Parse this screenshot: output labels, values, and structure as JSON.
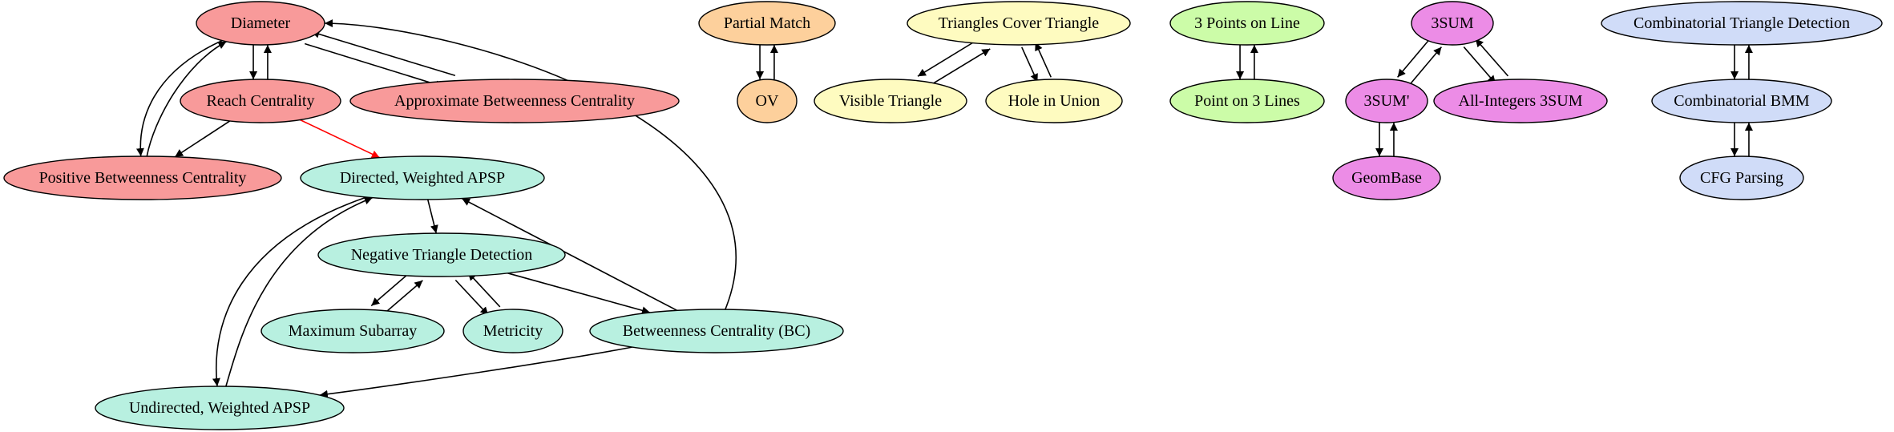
{
  "diagram": {
    "colors": {
      "red": "#f89a9a",
      "green": "#b8f0e0",
      "orange": "#fdd09c",
      "yellow": "#fefbc0",
      "lime": "#ccfca8",
      "pink": "#ec8ce6",
      "blue": "#d0dcf8",
      "edge": "#000000",
      "highlight_edge": "#ff0000"
    },
    "nodes": [
      {
        "id": "diameter",
        "label": "Diameter",
        "color": "red"
      },
      {
        "id": "reach",
        "label": "Reach Centrality",
        "color": "red"
      },
      {
        "id": "approx_bc",
        "label": "Approximate Betweenness Centrality",
        "color": "red"
      },
      {
        "id": "pos_bc",
        "label": "Positive Betweenness Centrality",
        "color": "red"
      },
      {
        "id": "dir_apsp",
        "label": "Directed, Weighted APSP",
        "color": "green"
      },
      {
        "id": "neg_tri",
        "label": "Negative Triangle Detection",
        "color": "green"
      },
      {
        "id": "max_sub",
        "label": "Maximum Subarray",
        "color": "green"
      },
      {
        "id": "metricity",
        "label": "Metricity",
        "color": "green"
      },
      {
        "id": "bc",
        "label": "Betweenness Centrality (BC)",
        "color": "green"
      },
      {
        "id": "undir_apsp",
        "label": "Undirected, Weighted APSP",
        "color": "green"
      },
      {
        "id": "partial",
        "label": "Partial Match",
        "color": "orange"
      },
      {
        "id": "ov",
        "label": "OV",
        "color": "orange"
      },
      {
        "id": "tri_cover",
        "label": "Triangles Cover Triangle",
        "color": "yellow"
      },
      {
        "id": "visible",
        "label": "Visible Triangle",
        "color": "yellow"
      },
      {
        "id": "hole",
        "label": "Hole in Union",
        "color": "yellow"
      },
      {
        "id": "points3",
        "label": "3 Points on Line",
        "color": "lime"
      },
      {
        "id": "lines3",
        "label": "Point on 3 Lines",
        "color": "lime"
      },
      {
        "id": "sum3",
        "label": "3SUM",
        "color": "pink"
      },
      {
        "id": "sum3p",
        "label": "3SUM'",
        "color": "pink"
      },
      {
        "id": "allint",
        "label": "All-Integers 3SUM",
        "color": "pink"
      },
      {
        "id": "geombase",
        "label": "GeomBase",
        "color": "pink"
      },
      {
        "id": "comb_tri",
        "label": "Combinatorial Triangle Detection",
        "color": "blue"
      },
      {
        "id": "comb_bmm",
        "label": "Combinatorial BMM",
        "color": "blue"
      },
      {
        "id": "cfg",
        "label": "CFG Parsing",
        "color": "blue"
      }
    ],
    "edges": [
      {
        "from": "diameter",
        "to": "reach"
      },
      {
        "from": "reach",
        "to": "diameter"
      },
      {
        "from": "diameter",
        "to": "approx_bc"
      },
      {
        "from": "approx_bc",
        "to": "diameter"
      },
      {
        "from": "diameter",
        "to": "pos_bc"
      },
      {
        "from": "pos_bc",
        "to": "diameter"
      },
      {
        "from": "reach",
        "to": "pos_bc"
      },
      {
        "from": "reach",
        "to": "dir_apsp",
        "highlight": true
      },
      {
        "from": "bc",
        "to": "diameter"
      },
      {
        "from": "dir_apsp",
        "to": "neg_tri"
      },
      {
        "from": "bc",
        "to": "dir_apsp"
      },
      {
        "from": "dir_apsp",
        "to": "undir_apsp"
      },
      {
        "from": "undir_apsp",
        "to": "dir_apsp"
      },
      {
        "from": "neg_tri",
        "to": "max_sub"
      },
      {
        "from": "max_sub",
        "to": "neg_tri"
      },
      {
        "from": "neg_tri",
        "to": "metricity"
      },
      {
        "from": "metricity",
        "to": "neg_tri"
      },
      {
        "from": "neg_tri",
        "to": "bc"
      },
      {
        "from": "bc",
        "to": "undir_apsp"
      },
      {
        "from": "partial",
        "to": "ov"
      },
      {
        "from": "ov",
        "to": "partial"
      },
      {
        "from": "tri_cover",
        "to": "visible"
      },
      {
        "from": "visible",
        "to": "tri_cover"
      },
      {
        "from": "tri_cover",
        "to": "hole"
      },
      {
        "from": "hole",
        "to": "tri_cover"
      },
      {
        "from": "points3",
        "to": "lines3"
      },
      {
        "from": "lines3",
        "to": "points3"
      },
      {
        "from": "sum3",
        "to": "sum3p"
      },
      {
        "from": "sum3p",
        "to": "sum3"
      },
      {
        "from": "sum3",
        "to": "allint"
      },
      {
        "from": "allint",
        "to": "sum3"
      },
      {
        "from": "sum3p",
        "to": "geombase"
      },
      {
        "from": "geombase",
        "to": "sum3p"
      },
      {
        "from": "comb_tri",
        "to": "comb_bmm"
      },
      {
        "from": "comb_bmm",
        "to": "comb_tri"
      },
      {
        "from": "comb_bmm",
        "to": "cfg"
      },
      {
        "from": "cfg",
        "to": "comb_bmm"
      }
    ]
  }
}
